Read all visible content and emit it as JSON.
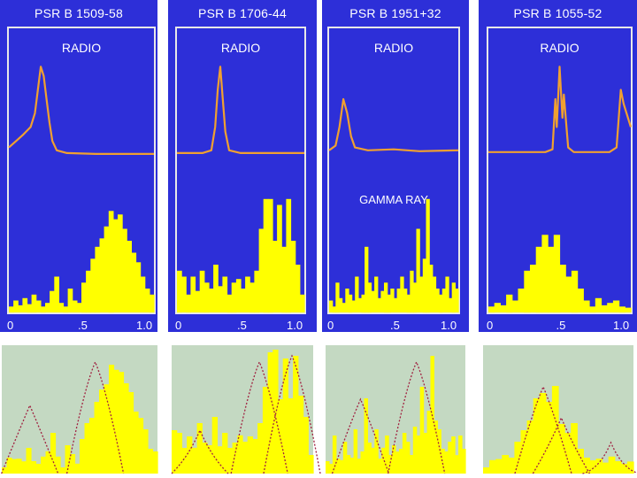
{
  "colors": {
    "panel_bg": "#2d2fd8",
    "radio_line": "#f0a030",
    "gamma_fill": "#ffff00",
    "green_bg": "#c4d9c2",
    "dotted": "#a02040"
  },
  "chart_data": [
    {
      "type": "line",
      "title": "PSR B 1509-58",
      "radio_label": "RADIO",
      "gamma_label": "",
      "xlim": [
        0,
        1.0
      ],
      "xticks": [
        "0",
        ".5",
        "1.0"
      ],
      "radio_profile": [
        [
          0,
          0.08
        ],
        [
          0.05,
          0.15
        ],
        [
          0.1,
          0.22
        ],
        [
          0.15,
          0.3
        ],
        [
          0.18,
          0.45
        ],
        [
          0.2,
          0.7
        ],
        [
          0.22,
          0.95
        ],
        [
          0.24,
          0.85
        ],
        [
          0.26,
          0.6
        ],
        [
          0.28,
          0.35
        ],
        [
          0.3,
          0.15
        ],
        [
          0.33,
          0.05
        ],
        [
          0.4,
          0.02
        ],
        [
          0.6,
          0.01
        ],
        [
          1.0,
          0.01
        ]
      ],
      "gamma_histogram": [
        0.05,
        0.1,
        0.06,
        0.12,
        0.07,
        0.15,
        0.1,
        0.05,
        0.08,
        0.18,
        0.3,
        0.08,
        0.05,
        0.2,
        0.1,
        0.08,
        0.25,
        0.35,
        0.45,
        0.55,
        0.62,
        0.72,
        0.85,
        0.78,
        0.82,
        0.7,
        0.6,
        0.5,
        0.42,
        0.3,
        0.2,
        0.15
      ],
      "composite_peaks": [
        [
          0.18,
          0.55
        ],
        [
          0.6,
          0.9
        ]
      ]
    },
    {
      "type": "line",
      "title": "PSR B 1706-44",
      "radio_label": "RADIO",
      "gamma_label": "",
      "xlim": [
        0,
        1.0
      ],
      "xticks": [
        "0",
        ".5",
        "1.0"
      ],
      "radio_profile": [
        [
          0,
          0.02
        ],
        [
          0.2,
          0.02
        ],
        [
          0.27,
          0.05
        ],
        [
          0.3,
          0.3
        ],
        [
          0.32,
          0.7
        ],
        [
          0.34,
          0.95
        ],
        [
          0.36,
          0.6
        ],
        [
          0.38,
          0.25
        ],
        [
          0.41,
          0.05
        ],
        [
          0.5,
          0.02
        ],
        [
          1.0,
          0.02
        ]
      ],
      "gamma_histogram": [
        0.35,
        0.3,
        0.15,
        0.3,
        0.18,
        0.35,
        0.25,
        0.2,
        0.4,
        0.22,
        0.3,
        0.15,
        0.25,
        0.28,
        0.2,
        0.3,
        0.25,
        0.35,
        0.7,
        0.95,
        0.95,
        0.6,
        0.9,
        0.55,
        0.95,
        0.6,
        0.4,
        0.15
      ],
      "composite_peaks": [
        [
          0.2,
          0.35
        ],
        [
          0.62,
          0.9
        ],
        [
          0.85,
          0.95
        ]
      ]
    },
    {
      "type": "line",
      "title": "PSR B 1951+32",
      "radio_label": "RADIO",
      "gamma_label": "GAMMA RAY",
      "xlim": [
        0,
        1.0
      ],
      "xticks": [
        "0",
        ".5",
        "1.0"
      ],
      "radio_profile": [
        [
          0,
          0.05
        ],
        [
          0.05,
          0.1
        ],
        [
          0.08,
          0.3
        ],
        [
          0.11,
          0.6
        ],
        [
          0.14,
          0.45
        ],
        [
          0.17,
          0.2
        ],
        [
          0.2,
          0.08
        ],
        [
          0.3,
          0.05
        ],
        [
          0.5,
          0.06
        ],
        [
          0.7,
          0.04
        ],
        [
          1.0,
          0.05
        ]
      ],
      "gamma_histogram": [
        0.1,
        0.05,
        0.25,
        0.12,
        0.08,
        0.2,
        0.15,
        0.1,
        0.3,
        0.12,
        0.15,
        0.55,
        0.25,
        0.18,
        0.3,
        0.12,
        0.18,
        0.25,
        0.15,
        0.2,
        0.12,
        0.2,
        0.3,
        0.2,
        0.15,
        0.35,
        0.25,
        0.7,
        0.3,
        0.45,
        0.95,
        0.4,
        0.3,
        0.2,
        0.15,
        0.2,
        0.3,
        0.12,
        0.25,
        0.2
      ],
      "composite_peaks": [
        [
          0.25,
          0.6
        ],
        [
          0.65,
          0.9
        ]
      ]
    },
    {
      "type": "line",
      "title": "PSR B 1055-52",
      "radio_label": "RADIO",
      "gamma_label": "",
      "xlim": [
        0,
        1.0
      ],
      "xticks": [
        "0",
        ".5",
        "1.0"
      ],
      "radio_profile": [
        [
          0,
          0.03
        ],
        [
          0.4,
          0.03
        ],
        [
          0.45,
          0.06
        ],
        [
          0.47,
          0.6
        ],
        [
          0.48,
          0.3
        ],
        [
          0.5,
          0.95
        ],
        [
          0.52,
          0.4
        ],
        [
          0.53,
          0.65
        ],
        [
          0.56,
          0.08
        ],
        [
          0.6,
          0.03
        ],
        [
          0.85,
          0.03
        ],
        [
          0.9,
          0.08
        ],
        [
          0.93,
          0.7
        ],
        [
          0.95,
          0.55
        ],
        [
          1.0,
          0.3
        ]
      ],
      "gamma_histogram": [
        0.05,
        0.08,
        0.06,
        0.15,
        0.1,
        0.2,
        0.35,
        0.4,
        0.55,
        0.65,
        0.55,
        0.65,
        0.4,
        0.3,
        0.35,
        0.2,
        0.1,
        0.05,
        0.12,
        0.06,
        0.08,
        0.1,
        0.05,
        0.04
      ],
      "composite_peaks": [
        [
          0.4,
          0.7
        ],
        [
          0.52,
          0.45
        ],
        [
          0.85,
          0.25
        ]
      ]
    }
  ]
}
